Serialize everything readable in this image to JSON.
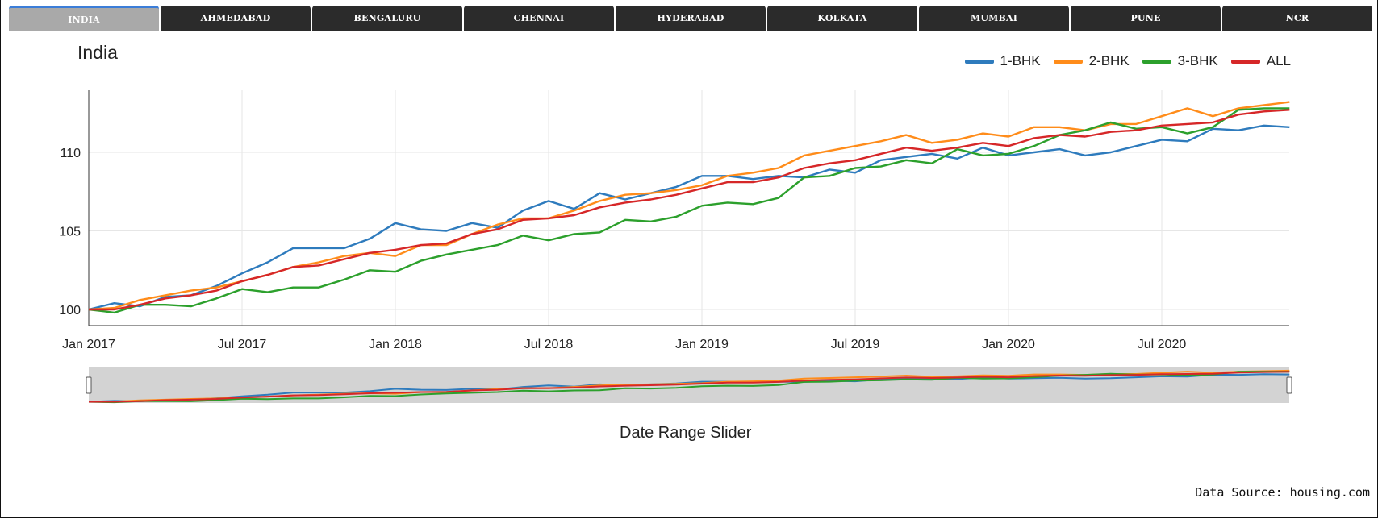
{
  "tabs": [
    "INDIA",
    "AHMEDABAD",
    "BENGALURU",
    "CHENNAI",
    "HYDERABAD",
    "KOLKATA",
    "MUMBAI",
    "PUNE",
    "NCR"
  ],
  "active_tab": "INDIA",
  "colors": {
    "1-BHK": "#2e7bbd",
    "2-BHK": "#ff8c1a",
    "3-BHK": "#2ca02c",
    "ALL": "#d62728"
  },
  "slider_label": "Date Range Slider",
  "source_text": "Data Source: housing.com",
  "chart_data": {
    "type": "line",
    "title": "India",
    "xlabel": "",
    "ylabel": "",
    "ylim": [
      99,
      114
    ],
    "x_tick_labels": [
      "Jan 2017",
      "Jul 2017",
      "Jan 2018",
      "Jul 2018",
      "Jan 2019",
      "Jul 2019",
      "Jan 2020",
      "Jul 2020"
    ],
    "y_tick_labels": [
      "100",
      "105",
      "110"
    ],
    "x_start": "Jan 2017",
    "x_end": "Nov 2020",
    "legend_position": "top-right",
    "grid": true,
    "series": [
      {
        "name": "1-BHK",
        "values": [
          100,
          100.4,
          100.2,
          100.8,
          100.9,
          101.5,
          102.3,
          103.0,
          103.9,
          103.9,
          103.9,
          104.5,
          105.5,
          105.1,
          105.0,
          105.5,
          105.2,
          106.3,
          106.9,
          106.4,
          107.4,
          107.0,
          107.4,
          107.8,
          108.5,
          108.5,
          108.3,
          108.5,
          108.4,
          108.9,
          108.7,
          109.5,
          109.7,
          109.9,
          109.6,
          110.3,
          109.8,
          110.0,
          110.2,
          109.8,
          110.0,
          110.4,
          110.8,
          110.7,
          111.5,
          111.4,
          111.7,
          111.6
        ]
      },
      {
        "name": "2-BHK",
        "values": [
          100,
          100.1,
          100.6,
          100.9,
          101.2,
          101.4,
          101.8,
          102.2,
          102.7,
          103.0,
          103.4,
          103.6,
          103.4,
          104.1,
          104.1,
          104.8,
          105.4,
          105.8,
          105.8,
          106.3,
          106.9,
          107.3,
          107.4,
          107.6,
          107.9,
          108.5,
          108.7,
          109.0,
          109.8,
          110.1,
          110.4,
          110.7,
          111.1,
          110.6,
          110.8,
          111.2,
          111.0,
          111.6,
          111.6,
          111.4,
          111.8,
          111.8,
          112.3,
          112.8,
          112.3,
          112.8,
          113.0,
          113.2
        ]
      },
      {
        "name": "3-BHK",
        "values": [
          100,
          99.8,
          100.3,
          100.3,
          100.2,
          100.7,
          101.3,
          101.1,
          101.4,
          101.4,
          101.9,
          102.5,
          102.4,
          103.1,
          103.5,
          103.8,
          104.1,
          104.7,
          104.4,
          104.8,
          104.9,
          105.7,
          105.6,
          105.9,
          106.6,
          106.8,
          106.7,
          107.1,
          108.4,
          108.5,
          109.0,
          109.1,
          109.5,
          109.3,
          110.2,
          109.8,
          109.9,
          110.4,
          111.1,
          111.4,
          111.9,
          111.5,
          111.6,
          111.2,
          111.6,
          112.7,
          112.8,
          112.8
        ]
      },
      {
        "name": "ALL",
        "values": [
          100,
          100.0,
          100.3,
          100.7,
          100.9,
          101.2,
          101.8,
          102.2,
          102.7,
          102.8,
          103.2,
          103.6,
          103.8,
          104.1,
          104.2,
          104.8,
          105.1,
          105.7,
          105.8,
          106.0,
          106.5,
          106.8,
          107.0,
          107.3,
          107.7,
          108.1,
          108.1,
          108.4,
          109.0,
          109.3,
          109.5,
          109.9,
          110.3,
          110.1,
          110.3,
          110.6,
          110.4,
          110.9,
          111.1,
          111.0,
          111.3,
          111.4,
          111.7,
          111.8,
          111.9,
          112.4,
          112.6,
          112.7
        ]
      }
    ]
  }
}
